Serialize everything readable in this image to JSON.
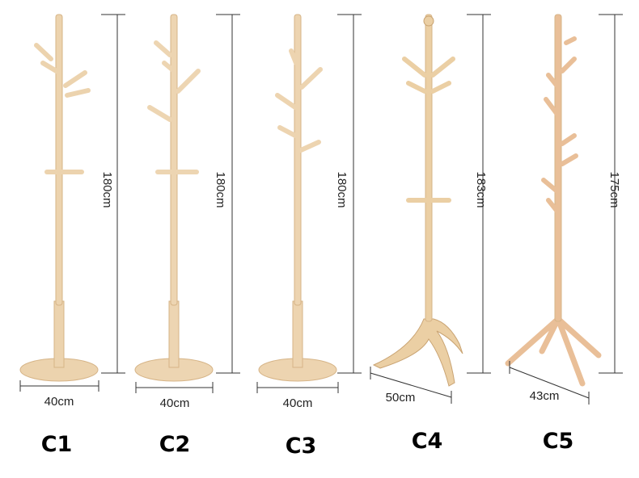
{
  "products": [
    {
      "label": "C1",
      "height": "180cm",
      "width": "40cm"
    },
    {
      "label": "C2",
      "height": "180cm",
      "width": "40cm"
    },
    {
      "label": "C3",
      "height": "180cm",
      "width": "40cm"
    },
    {
      "label": "C4",
      "height": "183cm",
      "width": "50cm"
    },
    {
      "label": "C5",
      "height": "175cm",
      "width": "43cm"
    }
  ]
}
